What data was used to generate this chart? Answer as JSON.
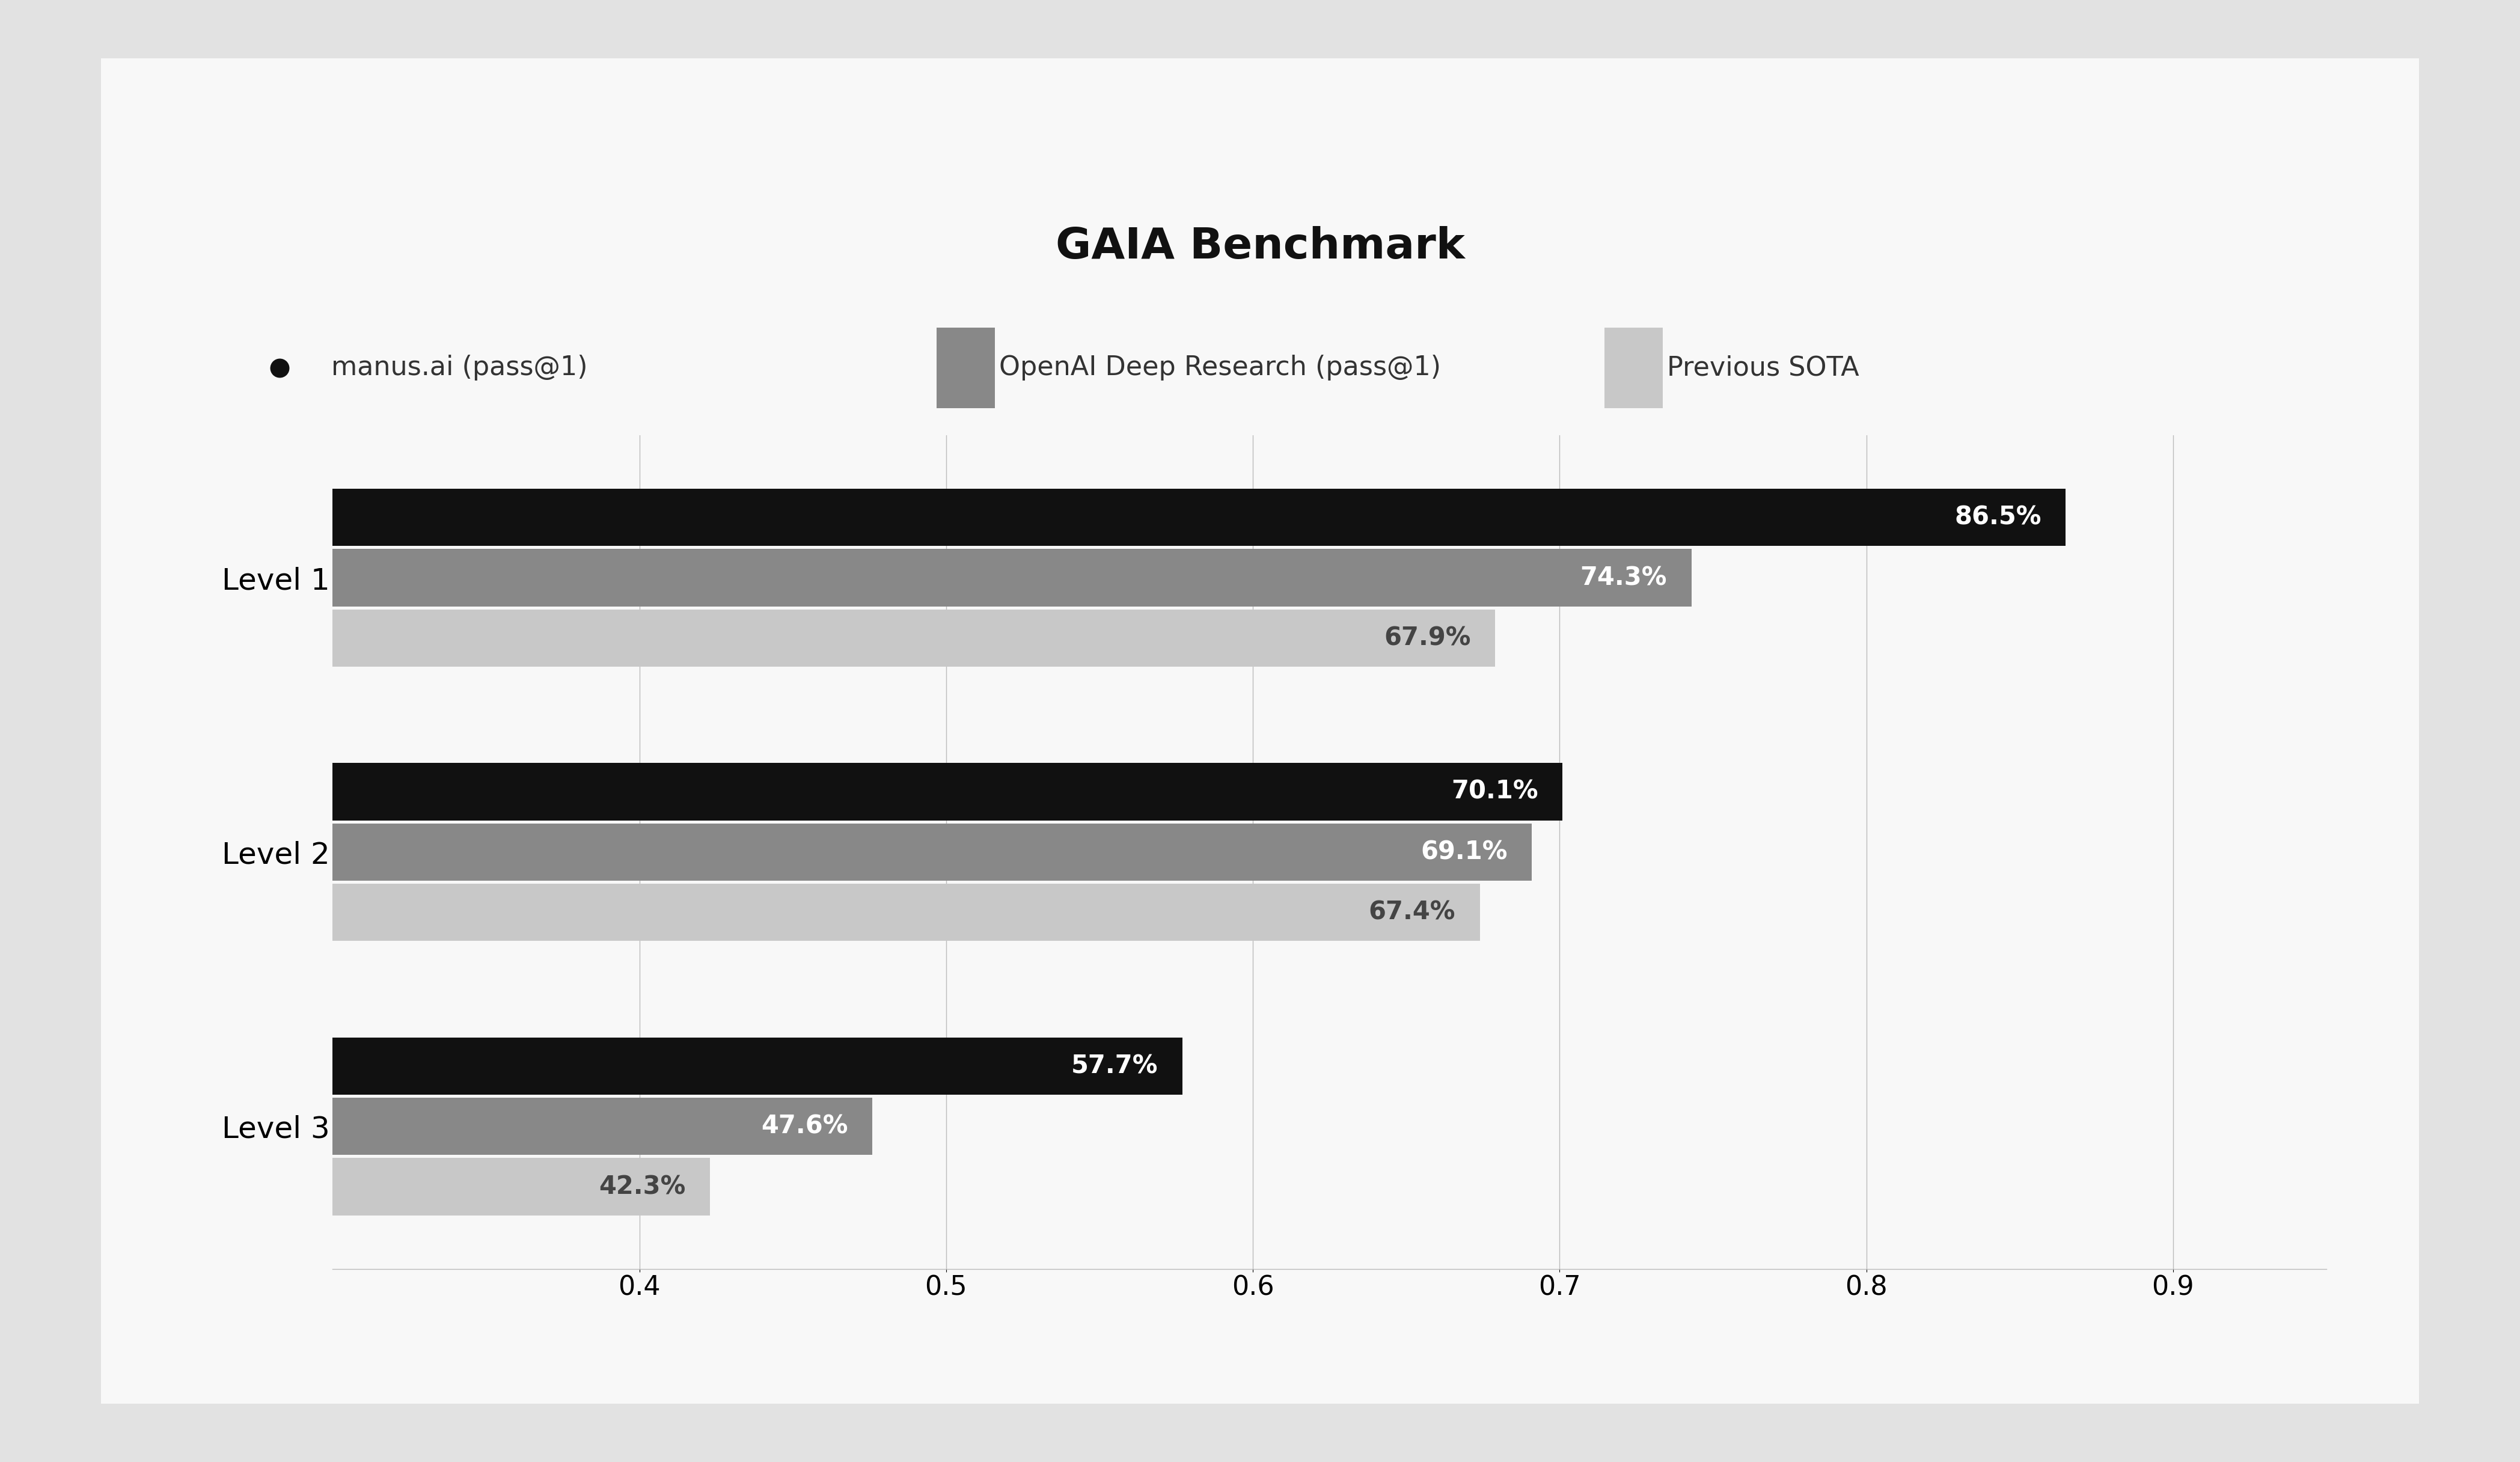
{
  "title": "GAIA Benchmark",
  "outer_bg_color": "#e2e2e2",
  "card_bg_color": "#f8f8f8",
  "plot_bg_color": "#f8f8f8",
  "categories": [
    "Level 1",
    "Level 2",
    "Level 3"
  ],
  "series": [
    {
      "name": "manus.ai (pass@1)",
      "values": [
        0.865,
        0.701,
        0.577
      ],
      "color": "#111111",
      "labels": [
        "86.5%",
        "70.1%",
        "57.7%"
      ],
      "label_color": "#ffffff"
    },
    {
      "name": "OpenAI Deep Research (pass@1)",
      "values": [
        0.743,
        0.691,
        0.476
      ],
      "color": "#888888",
      "labels": [
        "74.3%",
        "69.1%",
        "47.6%"
      ],
      "label_color": "#ffffff"
    },
    {
      "name": "Previous SOTA",
      "values": [
        0.679,
        0.674,
        0.423
      ],
      "color": "#c8c8c8",
      "labels": [
        "67.9%",
        "67.4%",
        "42.3%"
      ],
      "label_color": "#444444"
    }
  ],
  "xlim": [
    0.3,
    0.95
  ],
  "xticks": [
    0.4,
    0.5,
    0.6,
    0.7,
    0.8,
    0.9
  ],
  "bar_height": 0.22,
  "title_fontsize": 52,
  "legend_fontsize": 32,
  "tick_fontsize": 32,
  "label_fontsize": 30,
  "category_fontsize": 36
}
